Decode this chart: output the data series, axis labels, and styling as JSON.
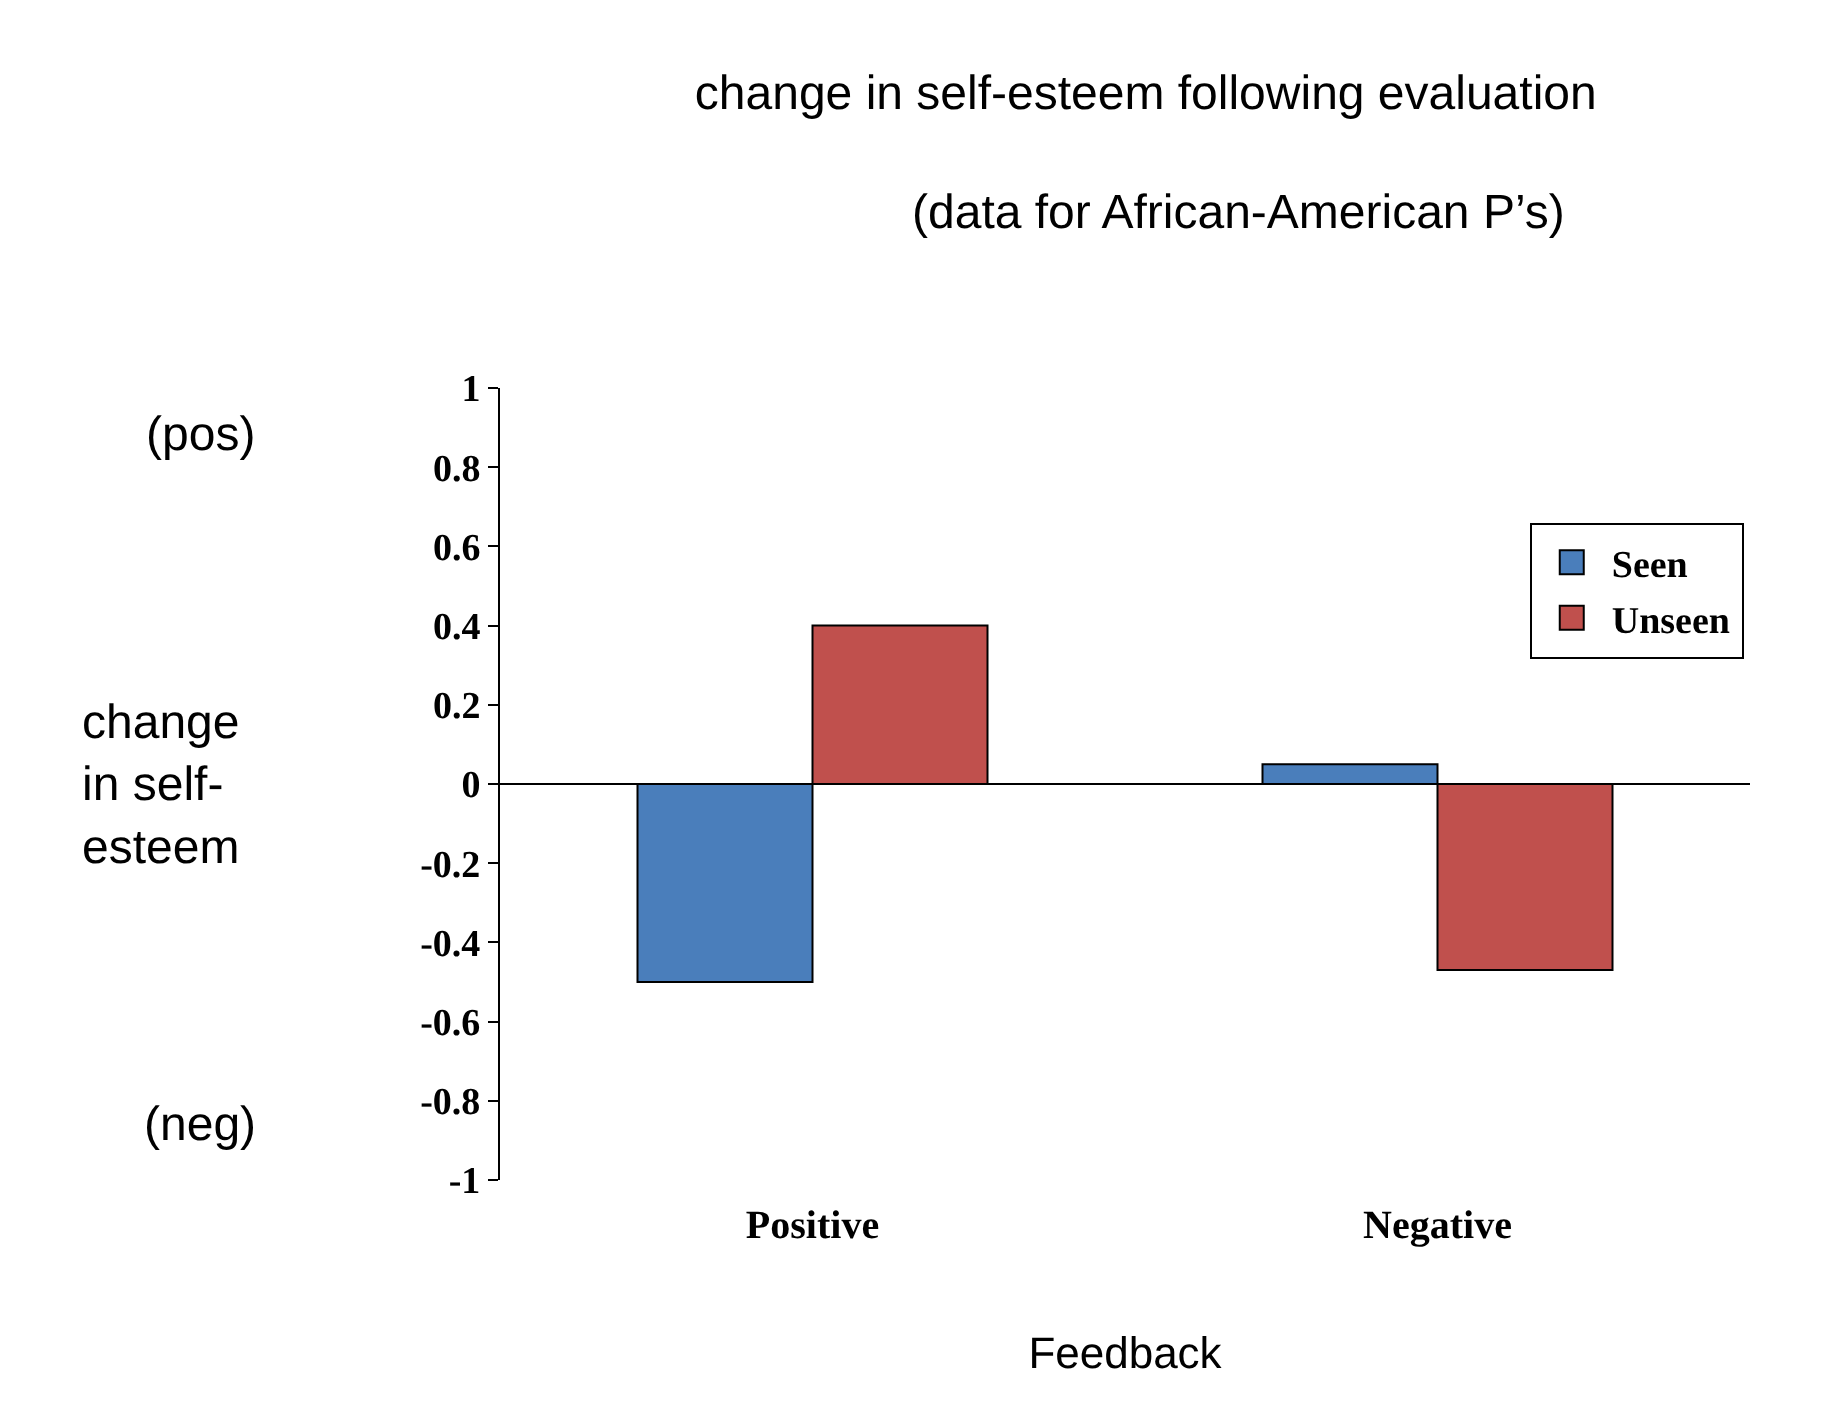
{
  "chart_data": {
    "type": "bar",
    "title": "change in self-esteem following evaluation",
    "subtitle": "(data for African-American P’s)",
    "xlabel": "Feedback",
    "ylabel": "change in self-esteem",
    "annotations": [
      "(pos)",
      "(neg)"
    ],
    "categories": [
      "Positive",
      "Negative"
    ],
    "series": [
      {
        "name": "Seen",
        "color": "#4a7ebb",
        "values": [
          -0.5,
          0.05
        ]
      },
      {
        "name": "Unseen",
        "color": "#c0504d",
        "values": [
          0.4,
          -0.47
        ]
      }
    ],
    "ylim": [
      -1,
      1
    ],
    "yticks": [
      -1,
      -0.8,
      -0.6,
      -0.4,
      -0.2,
      0,
      0.2,
      0.4,
      0.6,
      0.8,
      1
    ],
    "legend": "top right"
  }
}
